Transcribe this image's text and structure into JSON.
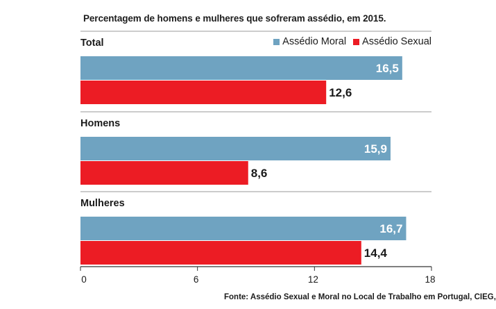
{
  "chart_data": {
    "type": "bar",
    "orientation": "horizontal",
    "title": "Percentagem de homens e mulheres que sofreram assédio, em 2015.",
    "categories": [
      "Total",
      "Homens",
      "Mulheres"
    ],
    "series": [
      {
        "name": "Assédio Moral",
        "values": [
          16.5,
          15.9,
          16.7
        ],
        "labels": [
          "16,5",
          "15,9",
          "16,7"
        ],
        "color": "#6fa3c1",
        "label_color": "#ffffff"
      },
      {
        "name": "Assédio Sexual",
        "values": [
          12.6,
          8.6,
          14.4
        ],
        "labels": [
          "12,6",
          "8,6",
          "14,4"
        ],
        "color": "#ec1c24",
        "label_color": "#1a1a1a"
      }
    ],
    "xlim": [
      0,
      18
    ],
    "xticks": [
      0,
      6,
      12,
      18
    ],
    "xtick_labels": [
      "0",
      "6",
      "12",
      "18"
    ],
    "grid": false,
    "legend_position": "top-right",
    "source": "Fonte: Assédio Sexual e Moral no Local de Trabalho em Portugal, CIEG,"
  }
}
